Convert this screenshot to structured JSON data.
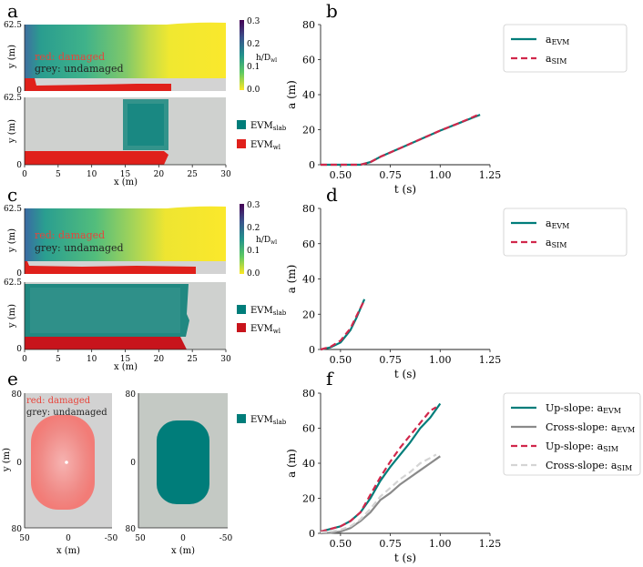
{
  "panels": {
    "a": "a",
    "b": "b",
    "c": "c",
    "d": "d",
    "e": "e",
    "f": "f"
  },
  "map_panels": {
    "a_top": {
      "y_label": "y (m)",
      "y_ticks": [
        "62.5",
        "0"
      ],
      "legend": [
        "red: damaged",
        "grey: undamaged"
      ],
      "colorbar": {
        "label": "h/D",
        "label_sub": "wl",
        "ticks": [
          "0.3",
          "0.2",
          "0.1",
          "0.0"
        ]
      }
    },
    "a_bottom": {
      "y_label": "y (m)",
      "y_ticks": [
        "62.5",
        "0"
      ],
      "x_label": "x (m)",
      "x_ticks": [
        "0",
        "5",
        "10",
        "15",
        "20",
        "25",
        "30"
      ],
      "legend": [
        {
          "label": "EVM",
          "sub": "slab",
          "color": "#007d7a"
        },
        {
          "label": "EVM",
          "sub": "wl",
          "color": "#e0201b"
        }
      ]
    },
    "c_top": {
      "y_label": "y (m)",
      "y_ticks": [
        "62.5",
        "0"
      ],
      "legend": [
        "red: damaged",
        "grey: undamaged"
      ],
      "colorbar": {
        "label": "h/D",
        "label_sub": "wl",
        "ticks": [
          "0.3",
          "0.2",
          "0.1",
          "0.0"
        ]
      }
    },
    "c_bottom": {
      "y_label": "y (m)",
      "y_ticks": [
        "62.5",
        "0"
      ],
      "x_label": "x (m)",
      "x_ticks": [
        "0",
        "5",
        "10",
        "15",
        "20",
        "25",
        "30"
      ],
      "legend": [
        {
          "label": "EVM",
          "sub": "slab",
          "color": "#007d7a"
        },
        {
          "label": "EVM",
          "sub": "wl",
          "color": "#c8141c"
        }
      ]
    },
    "e_left": {
      "y_label": "y (m)",
      "y_ticks": [
        "80",
        "0",
        "80"
      ],
      "x_label": "x (m)",
      "x_ticks": [
        "50",
        "0",
        "-50"
      ],
      "legend": [
        "red: damaged",
        "grey: undamaged"
      ]
    },
    "e_right": {
      "y_ticks": [
        "80",
        "0",
        "80"
      ],
      "x_label": "x (m)",
      "x_ticks": [
        "50",
        "0",
        "-50"
      ],
      "legend": [
        {
          "label": "EVM",
          "sub": "slab",
          "color": "#007d7a"
        }
      ]
    }
  },
  "colors": {
    "teal": "#007d7a",
    "red": "#d1274b",
    "grey": "#8a8a8a",
    "light_grey": "#d4d4d4",
    "damaged_red": "#e0201b",
    "undamaged_grey": "#cfd1cf"
  },
  "chart_data": [
    {
      "id": "b",
      "type": "line",
      "xlabel": "t (s)",
      "ylabel": "a (m)",
      "xlim": [
        0.4,
        1.25
      ],
      "ylim": [
        0,
        80
      ],
      "xticks": [
        "0.50",
        "0.75",
        "1.00",
        "1.25"
      ],
      "yticks": [
        "0",
        "20",
        "40",
        "60",
        "80"
      ],
      "legend_position": "outside-right",
      "series": [
        {
          "name": "a",
          "sub": "EVM",
          "color": "#007d7a",
          "dash": "solid",
          "x": [
            0.4,
            0.6,
            0.65,
            0.7,
            0.8,
            0.9,
            1.0,
            1.1,
            1.2
          ],
          "y": [
            0,
            0,
            1.5,
            4.5,
            9.5,
            14.5,
            19.5,
            24,
            28.5
          ]
        },
        {
          "name": "a",
          "sub": "SIM",
          "color": "#d1274b",
          "dash": "dashed",
          "x": [
            0.4,
            0.6,
            0.65,
            0.7,
            0.8,
            0.9,
            1.0,
            1.1,
            1.2
          ],
          "y": [
            0,
            0,
            1.5,
            4.5,
            9.5,
            14.5,
            19.5,
            24,
            29
          ]
        }
      ]
    },
    {
      "id": "d",
      "type": "line",
      "xlabel": "t (s)",
      "ylabel": "a (m)",
      "xlim": [
        0.4,
        1.25
      ],
      "ylim": [
        0,
        80
      ],
      "xticks": [
        "0.50",
        "0.75",
        "1.00",
        "1.25"
      ],
      "yticks": [
        "0",
        "20",
        "40",
        "60",
        "80"
      ],
      "legend_position": "outside-right",
      "series": [
        {
          "name": "a",
          "sub": "EVM",
          "color": "#007d7a",
          "dash": "solid",
          "x": [
            0.4,
            0.45,
            0.5,
            0.55,
            0.58,
            0.62
          ],
          "y": [
            0,
            1.2,
            4,
            11,
            18,
            28.5
          ]
        },
        {
          "name": "a",
          "sub": "SIM",
          "color": "#d1274b",
          "dash": "dashed",
          "x": [
            0.4,
            0.45,
            0.5,
            0.55,
            0.58,
            0.62
          ],
          "y": [
            0,
            1.5,
            5,
            12,
            19,
            28
          ]
        }
      ]
    },
    {
      "id": "f",
      "type": "line",
      "xlabel": "t (s)",
      "ylabel": "a (m)",
      "xlim": [
        0.4,
        1.25
      ],
      "ylim": [
        0,
        80
      ],
      "xticks": [
        "0.50",
        "0.75",
        "1.00",
        "1.25"
      ],
      "yticks": [
        "0",
        "20",
        "40",
        "60",
        "80"
      ],
      "legend_position": "outside-right",
      "series": [
        {
          "name": "Up-slope: a",
          "sub": "EVM",
          "color": "#007d7a",
          "dash": "solid",
          "x": [
            0.4,
            0.45,
            0.5,
            0.55,
            0.6,
            0.65,
            0.7,
            0.75,
            0.8,
            0.85,
            0.9,
            0.95,
            1.0
          ],
          "y": [
            1,
            2.5,
            4,
            7,
            12,
            20,
            30,
            38,
            45,
            52,
            60,
            66,
            74
          ]
        },
        {
          "name": "Cross-slope: a",
          "sub": "EVM",
          "color": "#8a8a8a",
          "dash": "solid",
          "x": [
            0.4,
            0.45,
            0.5,
            0.55,
            0.6,
            0.65,
            0.7,
            0.75,
            0.8,
            0.85,
            0.9,
            0.95,
            1.0
          ],
          "y": [
            0,
            0.3,
            1,
            3,
            7,
            12,
            19,
            23,
            28,
            32,
            36,
            40,
            44
          ]
        },
        {
          "name": "Up-slope: a",
          "sub": "SIM",
          "color": "#d1274b",
          "dash": "dashed",
          "x": [
            0.4,
            0.45,
            0.5,
            0.55,
            0.6,
            0.65,
            0.7,
            0.75,
            0.8,
            0.85,
            0.9,
            0.95,
            0.98
          ],
          "y": [
            1,
            2.5,
            4,
            7,
            12,
            22,
            32,
            41,
            49,
            56,
            63,
            70,
            72
          ]
        },
        {
          "name": "Cross-slope: a",
          "sub": "SIM",
          "color": "#d4d4d4",
          "dash": "dashed",
          "x": [
            0.4,
            0.45,
            0.5,
            0.55,
            0.6,
            0.65,
            0.7,
            0.75,
            0.8,
            0.85,
            0.9,
            0.95,
            0.98
          ],
          "y": [
            0.5,
            1,
            2,
            4,
            8,
            14,
            21,
            26,
            31,
            35,
            40,
            43,
            45
          ]
        }
      ]
    }
  ]
}
